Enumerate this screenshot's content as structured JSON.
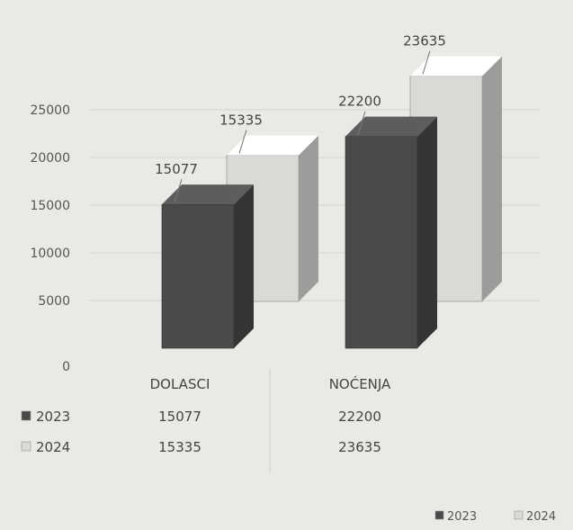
{
  "chart_data": {
    "type": "bar",
    "categories": [
      "DOLASCI",
      "NOĆENJA"
    ],
    "series": [
      {
        "name": "2023",
        "values": [
          15077,
          22200
        ],
        "color": "#4a4a4a"
      },
      {
        "name": "2024",
        "values": [
          15335,
          23635
        ],
        "color": "#d9d9d6"
      }
    ],
    "yticks": [
      "0",
      "5000",
      "10000",
      "15000",
      "20000",
      "25000"
    ],
    "ylim": [
      0,
      25000
    ],
    "data_labels": [
      "15077",
      "15335",
      "22200",
      "23635"
    ],
    "table": {
      "rows": [
        {
          "label": "2023",
          "values": [
            "15077",
            "22200"
          ]
        },
        {
          "label": "2024",
          "values": [
            "15335",
            "23635"
          ]
        }
      ]
    },
    "legend": {
      "placement": "bottom-right",
      "items": [
        "2023",
        "2024"
      ]
    },
    "grid": true,
    "style": "3d-bar"
  }
}
